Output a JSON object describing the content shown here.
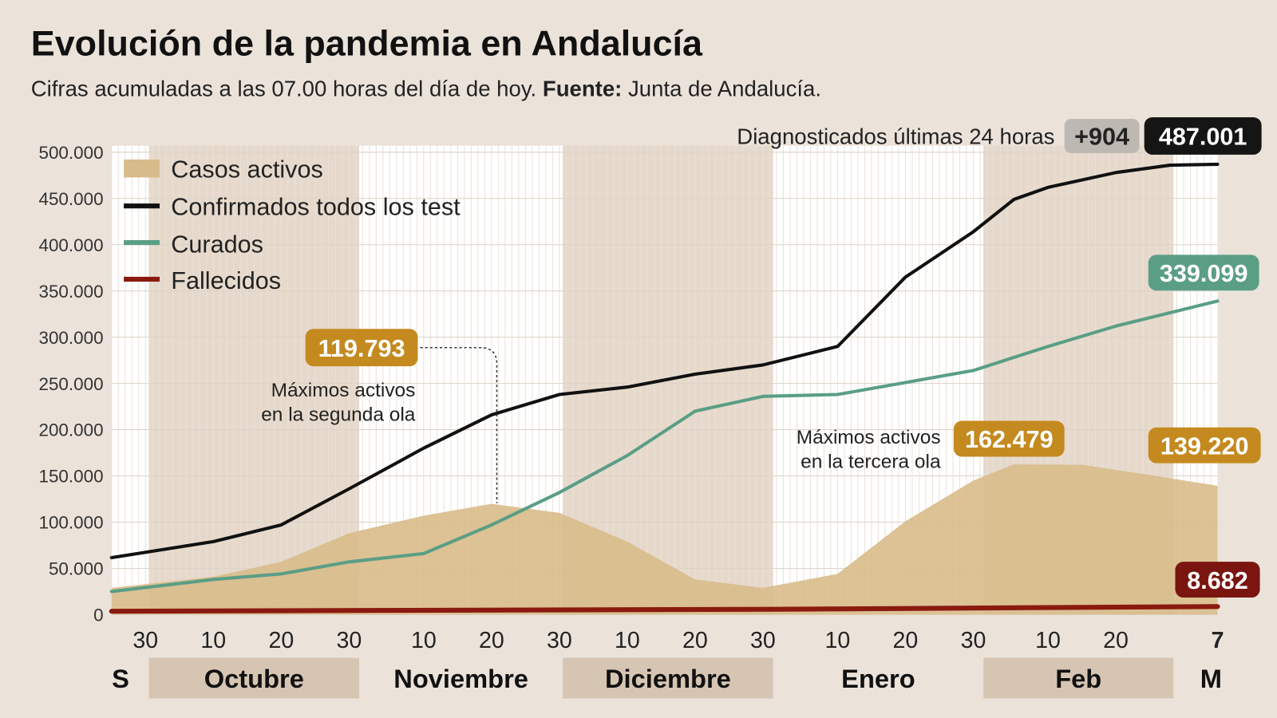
{
  "header": {
    "title": "Evolución de la pandemia en Andalucía",
    "subtitle_prefix": "Cifras acumuladas a las 07.00 horas del día de hoy. ",
    "subtitle_source_label": "Fuente:",
    "subtitle_source": " Junta de Andalucía."
  },
  "diagnosed": {
    "label": "Diagnosticados últimas 24 horas",
    "delta": "+904",
    "total": "487.001"
  },
  "colors": {
    "activos": "#d8bb8a",
    "confirmados": "#111111",
    "curados": "#5a9e85",
    "fallecidos": "#8a1a10",
    "badge_activos": "#c48a1f"
  },
  "chart_data": {
    "type": "line",
    "ylim": [
      0,
      500000
    ],
    "yticks": [
      "0",
      "50.000",
      "100.000",
      "150.000",
      "200.000",
      "250.000",
      "300.000",
      "350.000",
      "400.000",
      "450.000",
      "500.000"
    ],
    "xrange": [
      "2020-09-25",
      "2021-03-07"
    ],
    "xticks": [
      {
        "date": "2020-09-30",
        "label": "30"
      },
      {
        "date": "2020-10-10",
        "label": "10"
      },
      {
        "date": "2020-10-20",
        "label": "20"
      },
      {
        "date": "2020-10-30",
        "label": "30"
      },
      {
        "date": "2020-11-10",
        "label": "10"
      },
      {
        "date": "2020-11-20",
        "label": "20"
      },
      {
        "date": "2020-11-30",
        "label": "30"
      },
      {
        "date": "2020-12-10",
        "label": "10"
      },
      {
        "date": "2020-12-20",
        "label": "20"
      },
      {
        "date": "2020-12-30",
        "label": "30"
      },
      {
        "date": "2021-01-10",
        "label": "10"
      },
      {
        "date": "2021-01-20",
        "label": "20"
      },
      {
        "date": "2021-01-30",
        "label": "30"
      },
      {
        "date": "2021-02-10",
        "label": "10"
      },
      {
        "date": "2021-02-20",
        "label": "20"
      },
      {
        "date": "2021-03-07",
        "label": "7"
      }
    ],
    "months": [
      {
        "label": "S",
        "start": "2020-09-25",
        "end": "2020-09-30",
        "shaded": false
      },
      {
        "label": "Octubre",
        "start": "2020-10-01",
        "end": "2020-10-31",
        "shaded": true
      },
      {
        "label": "Noviembre",
        "start": "2020-11-01",
        "end": "2020-11-30",
        "shaded": false
      },
      {
        "label": "Diciembre",
        "start": "2020-12-01",
        "end": "2020-12-31",
        "shaded": true
      },
      {
        "label": "Enero",
        "start": "2021-01-01",
        "end": "2021-01-31",
        "shaded": false
      },
      {
        "label": "Feb",
        "start": "2021-02-01",
        "end": "2021-02-28",
        "shaded": true
      },
      {
        "label": "M",
        "start": "2021-03-01",
        "end": "2021-03-07",
        "shaded": false
      }
    ],
    "legend": "top-left",
    "series": [
      {
        "name": "Casos activos",
        "kind": "area",
        "color": "#d8bb8a",
        "x": [
          "2020-09-25",
          "2020-10-10",
          "2020-10-20",
          "2020-10-30",
          "2020-11-10",
          "2020-11-20",
          "2020-11-30",
          "2020-12-10",
          "2020-12-20",
          "2020-12-30",
          "2021-01-10",
          "2021-01-20",
          "2021-01-30",
          "2021-02-05",
          "2021-02-15",
          "2021-02-25",
          "2021-03-07"
        ],
        "values": [
          29000,
          41000,
          57000,
          88000,
          107000,
          119793,
          110000,
          79000,
          38000,
          29000,
          44000,
          101000,
          145000,
          162479,
          162000,
          151000,
          139220
        ]
      },
      {
        "name": "Confirmados todos los test",
        "kind": "line",
        "color": "#111111",
        "x": [
          "2020-09-25",
          "2020-10-10",
          "2020-10-20",
          "2020-10-30",
          "2020-11-10",
          "2020-11-20",
          "2020-11-30",
          "2020-12-10",
          "2020-12-20",
          "2020-12-30",
          "2021-01-10",
          "2021-01-20",
          "2021-01-30",
          "2021-02-05",
          "2021-02-10",
          "2021-02-20",
          "2021-02-28",
          "2021-03-07"
        ],
        "values": [
          61600,
          79000,
          97000,
          136000,
          180000,
          216000,
          238000,
          246000,
          260000,
          270000,
          290000,
          365000,
          414000,
          449000,
          462000,
          478000,
          486000,
          487001
        ]
      },
      {
        "name": "Curados",
        "kind": "line",
        "color": "#5a9e85",
        "x": [
          "2020-09-25",
          "2020-10-10",
          "2020-10-20",
          "2020-10-30",
          "2020-11-10",
          "2020-11-20",
          "2020-11-30",
          "2020-12-10",
          "2020-12-20",
          "2020-12-30",
          "2021-01-10",
          "2021-01-20",
          "2021-01-30",
          "2021-02-10",
          "2021-02-20",
          "2021-03-07"
        ],
        "values": [
          25000,
          38000,
          44000,
          57000,
          66000,
          97000,
          132000,
          172000,
          220000,
          236000,
          238000,
          251000,
          264000,
          290000,
          312000,
          339099
        ]
      },
      {
        "name": "Fallecidos",
        "kind": "line",
        "color": "#8a1a10",
        "x": [
          "2020-09-25",
          "2020-11-01",
          "2021-01-01",
          "2021-03-07"
        ],
        "values": [
          3600,
          4500,
          5800,
          8682
        ]
      }
    ],
    "labels": {
      "activos_last": "139.220",
      "curados_last": "339.099",
      "fallecidos_last": "8.682"
    },
    "annotations": [
      {
        "value": "119.793",
        "text": [
          "Máximos activos",
          "en la segunda ola"
        ]
      },
      {
        "value": "162.479",
        "text": [
          "Máximos activos",
          "en la tercera ola"
        ]
      }
    ]
  }
}
